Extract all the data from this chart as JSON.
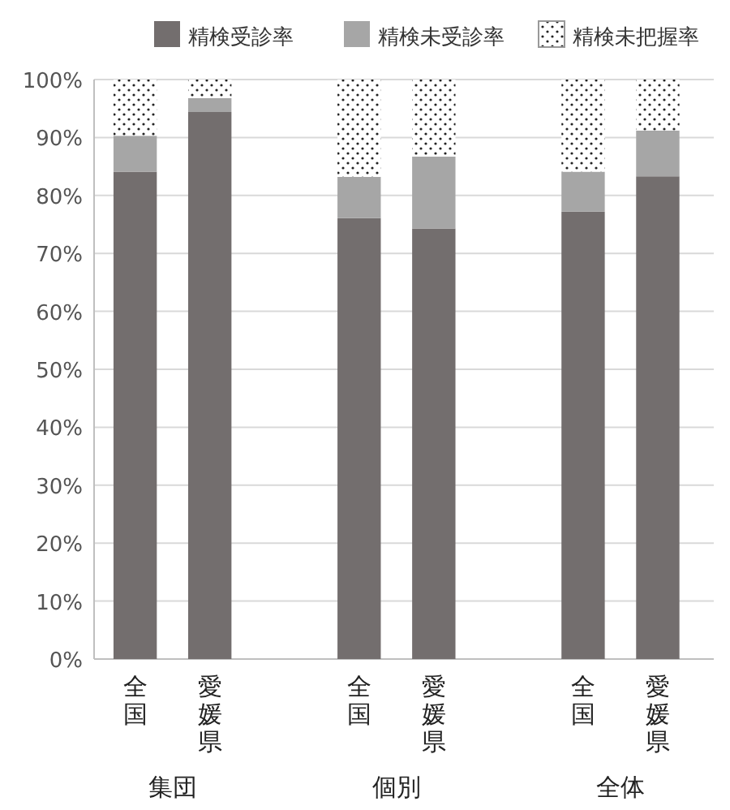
{
  "chart_data": {
    "type": "bar",
    "stacked": true,
    "categories": [
      "全国",
      "愛媛県",
      null,
      "全国",
      "愛媛県",
      null,
      "全国",
      "愛媛県"
    ],
    "series": [
      {
        "name": "精検受診率",
        "color": "#736e6e",
        "values": [
          84.1,
          94.4,
          null,
          76.1,
          74.3,
          null,
          77.2,
          83.3
        ]
      },
      {
        "name": "精検未受診率",
        "color": "#a6a6a6",
        "values": [
          6.2,
          2.4,
          null,
          7.1,
          12.4,
          null,
          6.9,
          7.9
        ]
      },
      {
        "name": "精検未把握率",
        "color": "#ffffff",
        "values": [
          9.7,
          3.2,
          null,
          16.8,
          13.3,
          null,
          15.9,
          8.8
        ]
      }
    ],
    "annotations": [
      "集団",
      "個別",
      "全体"
    ],
    "ylim": [
      0,
      100
    ],
    "yticks": [
      {
        "value": 0,
        "label": "0%"
      },
      {
        "value": 10,
        "label": "10%"
      },
      {
        "value": 20,
        "label": "20%"
      },
      {
        "value": 30,
        "label": "30%"
      },
      {
        "value": 40,
        "label": "40%"
      },
      {
        "value": 50,
        "label": "50%"
      },
      {
        "value": 60,
        "label": "60%"
      },
      {
        "value": 70,
        "label": "70%"
      },
      {
        "value": 80,
        "label": "80%"
      },
      {
        "value": 90,
        "label": "90%"
      },
      {
        "value": 100,
        "label": "100%"
      }
    ],
    "grid": "y",
    "legend": "top"
  }
}
